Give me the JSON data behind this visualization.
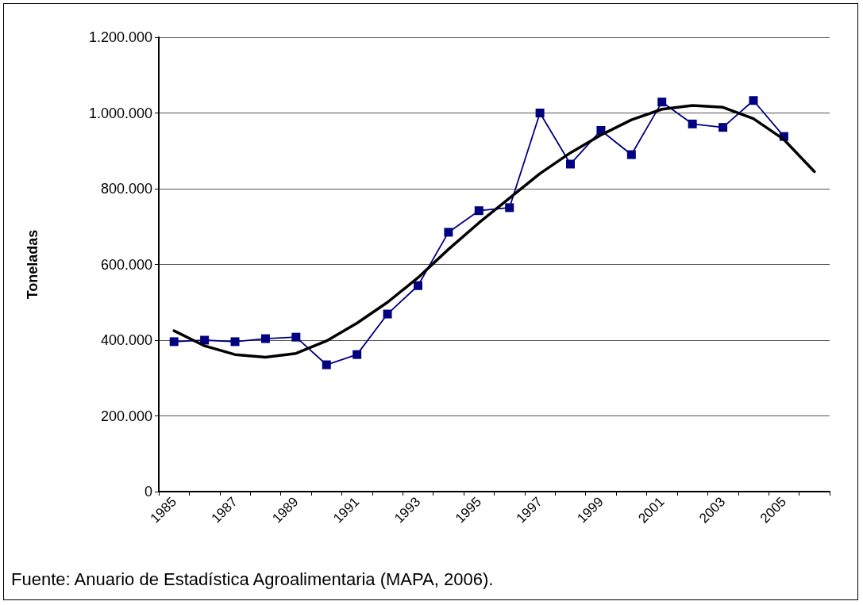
{
  "chart_data": {
    "type": "line",
    "ylabel": "Toneladas",
    "categories": [
      "1985",
      null,
      "1987",
      null,
      "1989",
      null,
      "1991",
      null,
      "1993",
      null,
      "1995",
      null,
      "1997",
      null,
      "1999",
      null,
      "2001",
      null,
      "2003",
      null,
      "2005",
      null
    ],
    "series": [
      {
        "color": "#000080",
        "marker": "square",
        "values": [
          396000,
          400000,
          396000,
          404000,
          408000,
          335000,
          362000,
          469000,
          544000,
          685000,
          742000,
          750000,
          1000000,
          865000,
          954000,
          890000,
          1029000,
          971000,
          962000,
          1033000,
          938000,
          null
        ]
      },
      {
        "type": "line",
        "color": "#000000",
        "marker": "none",
        "values": [
          425000,
          385000,
          362000,
          355000,
          365000,
          398000,
          445000,
          500000,
          565000,
          640000,
          710000,
          775000,
          840000,
          895000,
          942000,
          982000,
          1010000,
          1020000,
          1015000,
          985000,
          930000,
          845000
        ]
      }
    ],
    "ylim": [
      0,
      1200000
    ],
    "yticks": [
      {
        "value": 0,
        "label": "0"
      },
      {
        "value": 200000,
        "label": "200.000"
      },
      {
        "value": 400000,
        "label": "400.000"
      },
      {
        "value": 600000,
        "label": "600.000"
      },
      {
        "value": 800000,
        "label": "800.000"
      },
      {
        "value": 1000000,
        "label": "1.000.000"
      },
      {
        "value": 1200000,
        "label": "1.200.000"
      }
    ],
    "grid": "y",
    "annotations": [
      "Fuente: Anuario de Estadística Agroalimentaria (MAPA, 2006)."
    ]
  }
}
